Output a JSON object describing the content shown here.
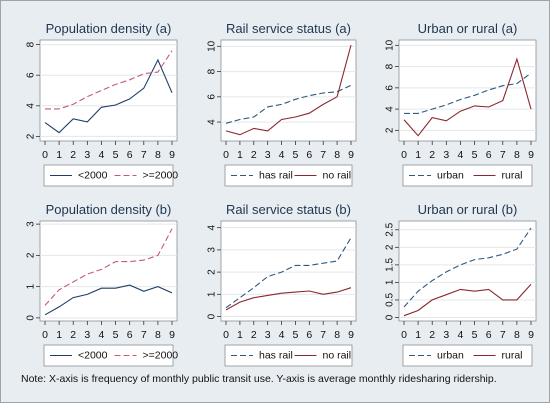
{
  "note": "Note: X-axis is frequency of monthly public transit use. Y-axis is average monthly ridesharing ridership.",
  "colors": {
    "dashed_series": "#2b5a83",
    "solid_series": "#8a2730",
    "pink_dashed": "#c65a78",
    "navy_solid": "#1f3d66",
    "panel_bg": "#e8edf1",
    "plot_bg": "#ffffff"
  },
  "chart_data": [
    {
      "type": "line",
      "title": "Population density (a)",
      "x": [
        0,
        1,
        2,
        3,
        4,
        5,
        6,
        7,
        8,
        9
      ],
      "xticks": [
        "0",
        "1",
        "2",
        "3",
        "4",
        "5",
        "6",
        "7",
        "8",
        "9"
      ],
      "yticks": [
        2,
        4,
        6,
        8
      ],
      "ylim": [
        1.7,
        8.3
      ],
      "series": [
        {
          "name": "<2000",
          "style": "solid",
          "color": "navy_solid",
          "values": [
            2.9,
            2.25,
            3.15,
            2.95,
            3.9,
            4.05,
            4.45,
            5.15,
            7.0,
            4.85
          ]
        },
        {
          "name": ">=2000",
          "style": "dashed",
          "color": "pink_dashed",
          "values": [
            3.8,
            3.8,
            4.1,
            4.6,
            5.0,
            5.4,
            5.7,
            6.1,
            6.2,
            7.6
          ]
        }
      ],
      "legend": [
        "<2000",
        ">=2000"
      ],
      "legend_order": [
        0,
        1
      ]
    },
    {
      "type": "line",
      "title": "Rail service status (a)",
      "x": [
        0,
        1,
        2,
        3,
        4,
        5,
        6,
        7,
        8,
        9
      ],
      "xticks": [
        "0",
        "1",
        "2",
        "3",
        "4",
        "5",
        "6",
        "7",
        "8",
        "9"
      ],
      "yticks": [
        4,
        6,
        8,
        10
      ],
      "ylim": [
        2.5,
        10.5
      ],
      "series": [
        {
          "name": "has rail",
          "style": "dashed",
          "color": "dashed_series",
          "values": [
            3.9,
            4.2,
            4.4,
            5.2,
            5.4,
            5.8,
            6.1,
            6.3,
            6.4,
            6.9
          ]
        },
        {
          "name": "no rail",
          "style": "solid",
          "color": "solid_series",
          "values": [
            3.3,
            3.0,
            3.5,
            3.3,
            4.2,
            4.4,
            4.7,
            5.4,
            6.0,
            10.1
          ]
        }
      ],
      "legend": [
        "has rail",
        "no rail"
      ],
      "legend_order": [
        0,
        1
      ]
    },
    {
      "type": "line",
      "title": "Urban or rural (a)",
      "x": [
        0,
        1,
        2,
        3,
        4,
        5,
        6,
        7,
        8,
        9
      ],
      "xticks": [
        "0",
        "1",
        "2",
        "3",
        "4",
        "5",
        "6",
        "7",
        "8",
        "9"
      ],
      "yticks": [
        2,
        4,
        6,
        8,
        10
      ],
      "ylim": [
        1.0,
        10.5
      ],
      "series": [
        {
          "name": "urban",
          "style": "dashed",
          "color": "dashed_series",
          "values": [
            3.6,
            3.6,
            4.0,
            4.4,
            4.9,
            5.3,
            5.8,
            6.2,
            6.4,
            7.4
          ]
        },
        {
          "name": "rural",
          "style": "solid",
          "color": "solid_series",
          "values": [
            3.0,
            1.5,
            3.2,
            2.9,
            3.8,
            4.3,
            4.2,
            4.8,
            8.7,
            4.0
          ]
        }
      ],
      "legend": [
        "urban",
        "rural"
      ],
      "legend_order": [
        0,
        1
      ]
    },
    {
      "type": "line",
      "title": "Population density (b)",
      "x": [
        0,
        1,
        2,
        3,
        4,
        5,
        6,
        7,
        8,
        9
      ],
      "xticks": [
        "0",
        "1",
        "2",
        "3",
        "4",
        "5",
        "6",
        "7",
        "8",
        "9"
      ],
      "yticks": [
        0,
        1,
        2,
        3
      ],
      "ylim": [
        -0.1,
        3.1
      ],
      "series": [
        {
          "name": "<2000",
          "style": "solid",
          "color": "navy_solid",
          "values": [
            0.1,
            0.35,
            0.65,
            0.75,
            0.95,
            0.95,
            1.05,
            0.85,
            1.0,
            0.8
          ]
        },
        {
          "name": ">=2000",
          "style": "dashed",
          "color": "pink_dashed",
          "values": [
            0.4,
            0.9,
            1.15,
            1.4,
            1.55,
            1.8,
            1.8,
            1.85,
            2.0,
            2.85
          ]
        }
      ],
      "legend": [
        "<2000",
        ">=2000"
      ],
      "legend_order": [
        0,
        1
      ]
    },
    {
      "type": "line",
      "title": "Rail service status (b)",
      "x": [
        0,
        1,
        2,
        3,
        4,
        5,
        6,
        7,
        8,
        9
      ],
      "xticks": [
        "0",
        "1",
        "2",
        "3",
        "4",
        "5",
        "6",
        "7",
        "8",
        "9"
      ],
      "yticks": [
        0,
        1,
        2,
        3,
        4
      ],
      "ylim": [
        -0.2,
        4.3
      ],
      "series": [
        {
          "name": "has rail",
          "style": "dashed",
          "color": "dashed_series",
          "values": [
            0.4,
            0.85,
            1.3,
            1.8,
            2.0,
            2.3,
            2.3,
            2.4,
            2.5,
            3.55
          ]
        },
        {
          "name": "no rail",
          "style": "solid",
          "color": "solid_series",
          "values": [
            0.3,
            0.65,
            0.85,
            0.95,
            1.05,
            1.1,
            1.15,
            1.0,
            1.1,
            1.3
          ]
        }
      ],
      "legend": [
        "has rail",
        "no rail"
      ],
      "legend_order": [
        0,
        1
      ]
    },
    {
      "type": "line",
      "title": "Urban or rural (b)",
      "x": [
        0,
        1,
        2,
        3,
        4,
        5,
        6,
        7,
        8,
        9
      ],
      "xticks": [
        "0",
        "1",
        "2",
        "3",
        "4",
        "5",
        "6",
        "7",
        "8",
        "9"
      ],
      "yticks": [
        0,
        0.5,
        1,
        1.5,
        2,
        2.5
      ],
      "ylim": [
        -0.1,
        2.75
      ],
      "series": [
        {
          "name": "urban",
          "style": "dashed",
          "color": "dashed_series",
          "values": [
            0.3,
            0.75,
            1.05,
            1.3,
            1.5,
            1.65,
            1.7,
            1.8,
            1.95,
            2.55
          ]
        },
        {
          "name": "rural",
          "style": "solid",
          "color": "solid_series",
          "values": [
            0.05,
            0.2,
            0.5,
            0.65,
            0.8,
            0.75,
            0.8,
            0.5,
            0.5,
            0.95
          ]
        }
      ],
      "legend": [
        "urban",
        "rural"
      ],
      "legend_order": [
        0,
        1
      ]
    }
  ]
}
